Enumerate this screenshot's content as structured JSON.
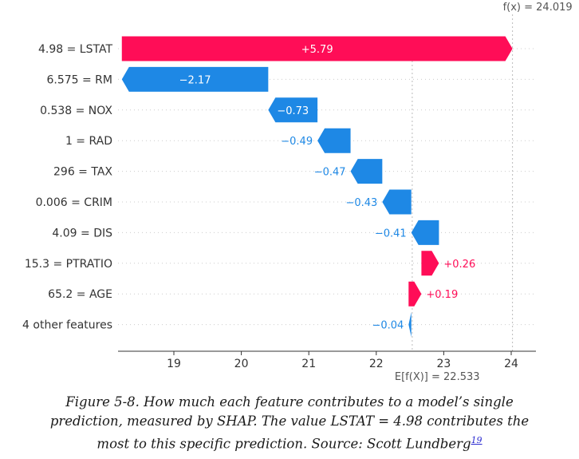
{
  "chart_data": {
    "type": "waterfall",
    "base_value": 22.533,
    "output_value": 24.019,
    "base_label": "E[f(X)] = 22.533",
    "output_label": "f(x) = 24.019",
    "xlim": [
      18.2,
      24.35
    ],
    "x_ticks": [
      19,
      20,
      21,
      22,
      23,
      24
    ],
    "x_tick_labels": [
      "19",
      "20",
      "21",
      "22",
      "23",
      "24"
    ],
    "features": [
      {
        "label": "4.98 = LSTAT",
        "value": 5.79,
        "value_label": "+5.79"
      },
      {
        "label": "6.575 = RM",
        "value": -2.17,
        "value_label": "−2.17"
      },
      {
        "label": "0.538 = NOX",
        "value": -0.73,
        "value_label": "−0.73"
      },
      {
        "label": "1 = RAD",
        "value": -0.49,
        "value_label": "−0.49"
      },
      {
        "label": "296 = TAX",
        "value": -0.47,
        "value_label": "−0.47"
      },
      {
        "label": "0.006 = CRIM",
        "value": -0.43,
        "value_label": "−0.43"
      },
      {
        "label": "4.09 = DIS",
        "value": -0.41,
        "value_label": "−0.41"
      },
      {
        "label": "15.3 = PTRATIO",
        "value": 0.26,
        "value_label": "+0.26"
      },
      {
        "label": "65.2 = AGE",
        "value": 0.19,
        "value_label": "+0.19"
      },
      {
        "label": "4 other features",
        "value": -0.04,
        "value_label": "−0.04"
      }
    ],
    "colors": {
      "positive": "#ff0d57",
      "negative": "#1e88e5",
      "axis": "#333333",
      "grid": "#cccccc"
    }
  },
  "caption": {
    "line1": "Figure 5-8. How much each feature contributes to a model’s single",
    "line2": "prediction, measured by SHAP. The value LSTAT = 4.98 contributes the",
    "line3": "most to this specific prediction. Source: Scott Lundberg",
    "footnote": "19"
  }
}
